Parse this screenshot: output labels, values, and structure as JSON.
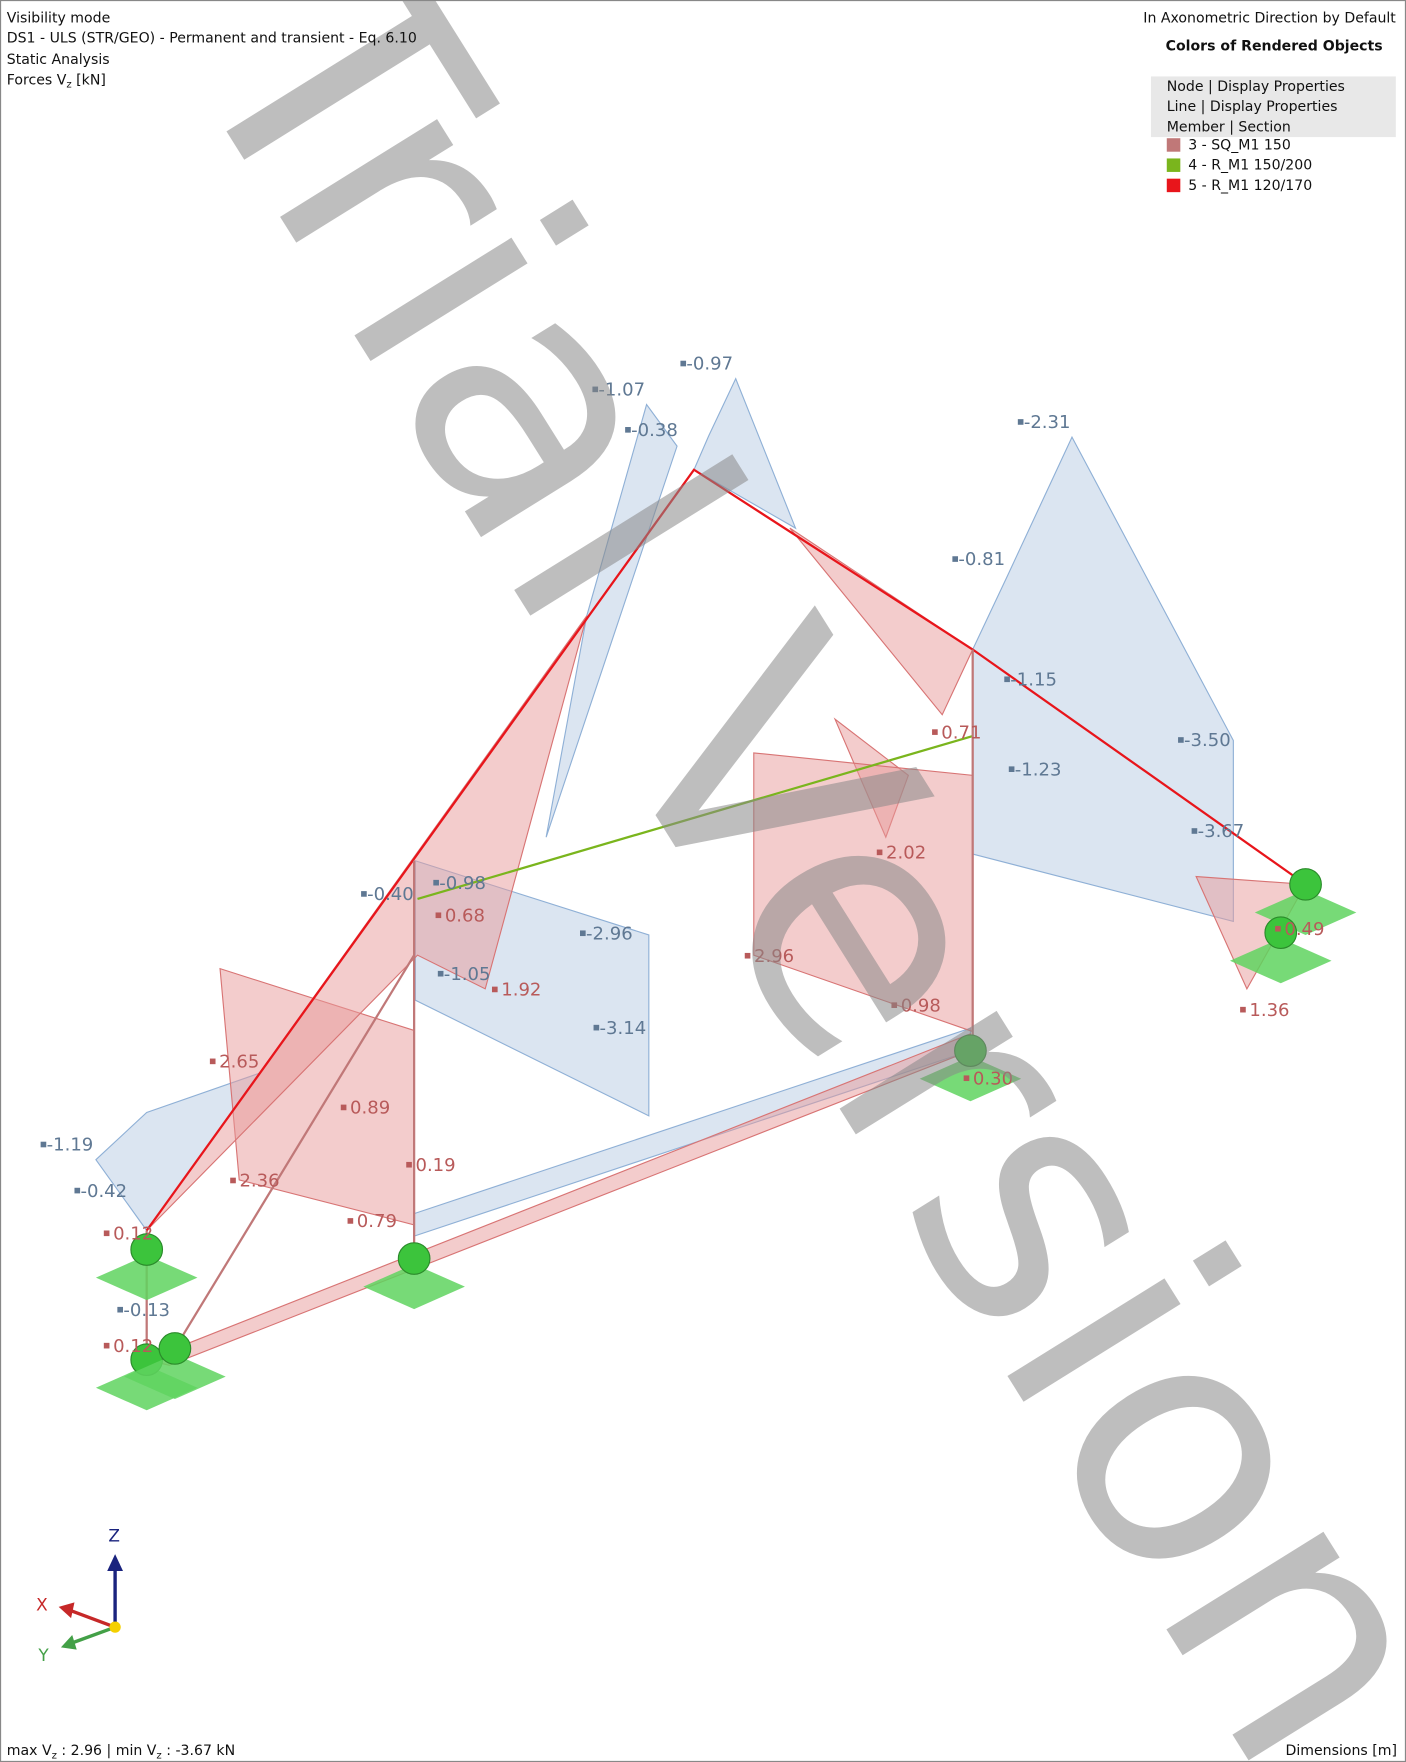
{
  "header": {
    "mode": "Visibility mode",
    "combination": "DS1 - ULS (STR/GEO) - Permanent and transient - Eq. 6.10",
    "analysis": "Static Analysis",
    "forces": [
      "Forces V",
      "z",
      " [kN]"
    ],
    "direction": "In Axonometric Direction by Default"
  },
  "legend": {
    "title": "Colors of Rendered Objects",
    "rows": [
      "Node | Display Properties",
      "Line | Display Properties",
      "Member | Section"
    ],
    "items": [
      {
        "label": "3 - SQ_M1 150",
        "color": "#c07878"
      },
      {
        "label": "4 - R_M1 150/200",
        "color": "#7ab51d"
      },
      {
        "label": "5 - R_M1 120/170",
        "color": "#e8151b"
      }
    ]
  },
  "values": {
    "negative": [
      "-1.07",
      "-0.97",
      "-0.38",
      "-2.31",
      "-0.81",
      "-1.15",
      "-3.50",
      "-1.23",
      "-3.67",
      "-0.40",
      "-0.98",
      "-2.96",
      "-1.05",
      "-3.14",
      "-1.19",
      "-0.42",
      "-0.13"
    ],
    "positive": [
      "0.71",
      "2.02",
      "0.68",
      "1.92",
      "2.96",
      "0.98",
      "0.49",
      "1.36",
      "0.30",
      "2.65",
      "0.89",
      "0.19",
      "2.36",
      "0.79",
      "0.12",
      "0.12"
    ]
  },
  "axes": [
    "Z",
    "X",
    "Y"
  ],
  "footer": {
    "summary": [
      "max V",
      "z",
      " : 2.96 | min V",
      "z",
      " : -3.67 kN"
    ],
    "units": "Dimensions [m]"
  },
  "watermark": "Trial Version"
}
